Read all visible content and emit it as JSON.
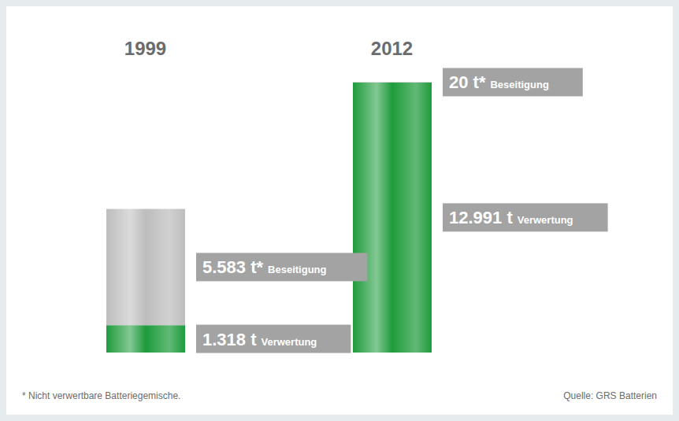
{
  "chart_data": {
    "type": "bar",
    "categories": [
      "1999",
      "2012"
    ],
    "series": [
      {
        "name": "Verwertung",
        "color": "#1e9b3b",
        "values": [
          1318,
          12991
        ],
        "value_labels": [
          "1.318 t",
          "12.991 t"
        ]
      },
      {
        "name": "Beseitigung",
        "color": "#bdbdbd",
        "values": [
          5583,
          20
        ],
        "value_labels": [
          "5.583 t*",
          "20 t*"
        ]
      }
    ],
    "stacked": true,
    "data_labels": true,
    "tick_labels": "x",
    "ylim": [
      0,
      14000
    ],
    "footnote": "* Nicht verwertbare Batteriegemische.",
    "source": "Quelle: GRS Batterien"
  }
}
